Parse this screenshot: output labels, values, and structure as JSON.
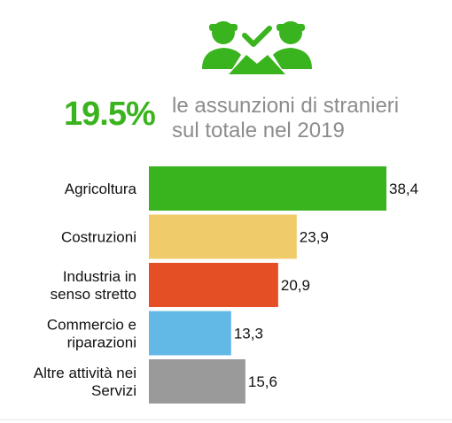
{
  "header": {
    "icon": "people-check-icon",
    "percent": "19.5%",
    "subtitle_line1": "le assunzioni di stranieri",
    "subtitle_line2": "sul totale nel 2019"
  },
  "colors": {
    "accent_green": "#3ab41e",
    "subtitle_gray": "#8c8c8c"
  },
  "chart_data": {
    "type": "bar",
    "orientation": "horizontal",
    "categories": [
      [
        "Agricoltura"
      ],
      [
        "Costruzioni"
      ],
      [
        "Industria in",
        "senso stretto"
      ],
      [
        "Commercio e",
        "riparazioni"
      ],
      [
        "Altre attività nei",
        "Servizi"
      ]
    ],
    "values": [
      38.4,
      23.9,
      20.9,
      13.3,
      15.6
    ],
    "value_labels": [
      "38,4",
      "23,9",
      "20,9",
      "13,3",
      "15,6"
    ],
    "colors": [
      "#3ab41e",
      "#f0cb6a",
      "#e44f25",
      "#63b9e6",
      "#9a9a9a"
    ],
    "xlim": [
      0,
      38.4
    ]
  }
}
